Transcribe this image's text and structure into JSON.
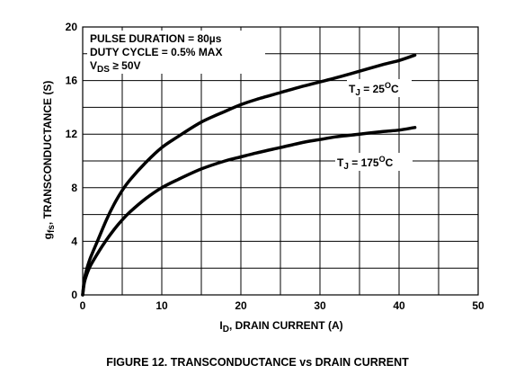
{
  "figure_caption": "FIGURE 12.  TRANSCONDUCTANCE vs DRAIN CURRENT",
  "chart_data": {
    "type": "line",
    "title": "",
    "xlabel": {
      "main": "I",
      "sub": "D",
      "rest": ", DRAIN CURRENT (A)"
    },
    "ylabel": {
      "main": "g",
      "sub": "fs",
      "rest": ", TRANSCONDUCTANCE (S)"
    },
    "xlim": [
      0,
      50
    ],
    "ylim": [
      0,
      20
    ],
    "xticks": [
      "0",
      "10",
      "20",
      "30",
      "40",
      "50"
    ],
    "yticks": [
      "0",
      "4",
      "8",
      "12",
      "16",
      "20"
    ],
    "grid": true,
    "conditions": {
      "line1": "PULSE DURATION = 80µs",
      "line2": "DUTY CYCLE = 0.5% MAX",
      "line3_main": "V",
      "line3_sub": "DS",
      "line3_rest": " ≥ 50V"
    },
    "series": [
      {
        "name": "T_J = 25°C",
        "label": {
          "t": "T",
          "sub": "J",
          "eq": " = 25",
          "sup": "O",
          "c": "C"
        },
        "x": [
          0,
          0.2,
          0.5,
          1,
          2,
          3,
          4,
          5,
          6,
          8,
          10,
          12,
          15,
          18,
          20,
          22,
          25,
          28,
          30,
          32,
          35,
          38,
          40,
          42
        ],
        "y": [
          0,
          1.1,
          1.9,
          2.8,
          4.2,
          5.6,
          6.8,
          7.8,
          8.6,
          9.9,
          11.0,
          11.8,
          12.9,
          13.7,
          14.2,
          14.6,
          15.1,
          15.6,
          15.9,
          16.2,
          16.7,
          17.2,
          17.5,
          17.9
        ]
      },
      {
        "name": "T_J = 175°C",
        "label": {
          "t": "T",
          "sub": "J",
          "eq": " = 175",
          "sup": "O",
          "c": "C"
        },
        "x": [
          0,
          0.2,
          0.5,
          1,
          2,
          3,
          4,
          5,
          6,
          8,
          10,
          12,
          15,
          18,
          20,
          22,
          25,
          28,
          30,
          32,
          35,
          38,
          40,
          42
        ],
        "y": [
          0,
          0.9,
          1.5,
          2.2,
          3.2,
          4.1,
          4.9,
          5.6,
          6.2,
          7.2,
          8.0,
          8.6,
          9.4,
          10.0,
          10.3,
          10.6,
          11.0,
          11.4,
          11.6,
          11.8,
          12.0,
          12.2,
          12.3,
          12.5
        ]
      }
    ]
  }
}
